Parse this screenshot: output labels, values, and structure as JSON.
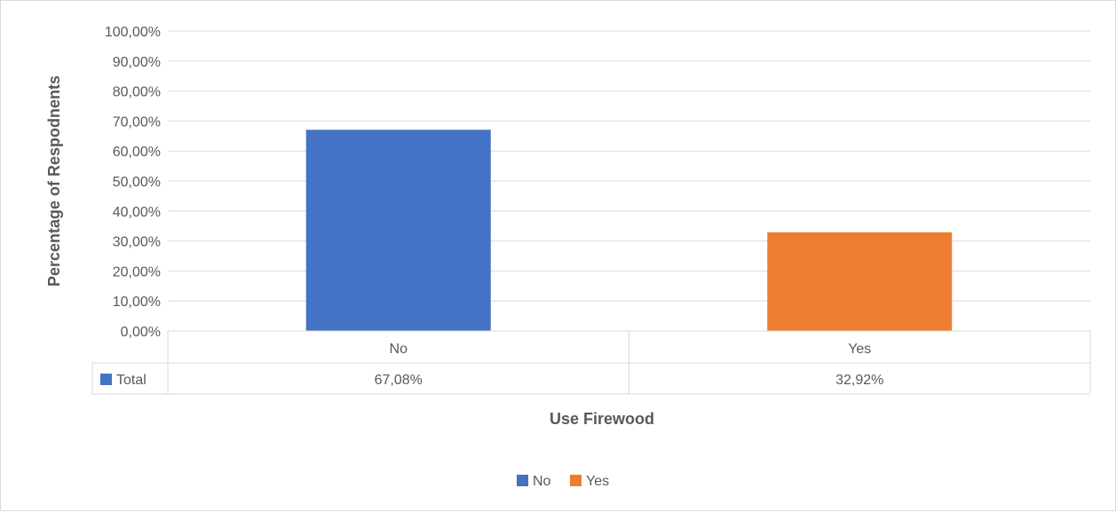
{
  "chart_data": {
    "type": "bar",
    "title": "",
    "categories": [
      "No",
      "Yes"
    ],
    "values": [
      67.08,
      32.92
    ],
    "value_labels": [
      "67,08%",
      "32,92%"
    ],
    "xlabel": "Use Firewood",
    "ylabel": "Percentage of Respodnents",
    "ylim": [
      0,
      100
    ],
    "y_ticks": [
      "0,00%",
      "10,00%",
      "20,00%",
      "30,00%",
      "40,00%",
      "50,00%",
      "60,00%",
      "70,00%",
      "80,00%",
      "90,00%",
      "100,00%"
    ],
    "y_step": 10,
    "grid": true,
    "colors": [
      "#4472c4",
      "#ed7d31"
    ],
    "data_table": {
      "series_name": "Total",
      "series_color": "#4472c4"
    },
    "legend": {
      "position": "bottom",
      "entries": [
        {
          "label": "No",
          "color": "#4472c4"
        },
        {
          "label": "Yes",
          "color": "#ed7d31"
        }
      ]
    }
  }
}
